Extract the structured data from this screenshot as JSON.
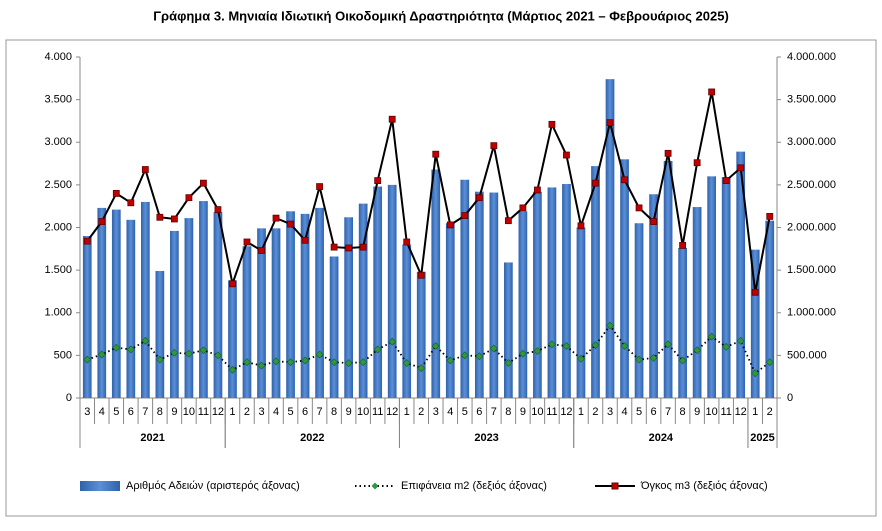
{
  "chart_data": {
    "type": "bar-line-combo",
    "title": "Γράφημα 3. Μηνιαία Ιδιωτική Οικοδομική Δραστηριότητα (Μάρτιος 2021 – Φεβρουάριος 2025)",
    "categories": [
      "3",
      "4",
      "5",
      "6",
      "7",
      "8",
      "9",
      "10",
      "11",
      "12",
      "1",
      "2",
      "3",
      "4",
      "5",
      "6",
      "7",
      "8",
      "9",
      "10",
      "11",
      "12",
      "1",
      "2",
      "3",
      "4",
      "5",
      "6",
      "7",
      "8",
      "9",
      "10",
      "11",
      "12",
      "1",
      "2",
      "3",
      "4",
      "5",
      "6",
      "7",
      "8",
      "9",
      "10",
      "11",
      "12",
      "1",
      "2"
    ],
    "category_groups": [
      {
        "label": "2021",
        "count": 10
      },
      {
        "label": "2022",
        "count": 12
      },
      {
        "label": "2023",
        "count": 12
      },
      {
        "label": "2024",
        "count": 12
      },
      {
        "label": "2025",
        "count": 2
      }
    ],
    "series": [
      {
        "name": "Αριθμός Αδειών (αριστερός άξονας)",
        "type": "bar",
        "axis": "y",
        "color": "#3a72c0",
        "values": [
          1900,
          2230,
          2210,
          2090,
          2300,
          1490,
          1960,
          2110,
          2310,
          2180,
          1380,
          1780,
          1990,
          1990,
          2190,
          2160,
          2230,
          1660,
          2120,
          2280,
          2480,
          2500,
          1800,
          1480,
          2680,
          2050,
          2560,
          2420,
          2410,
          1590,
          2190,
          2420,
          2470,
          2510,
          2000,
          2720,
          3740,
          2800,
          2050,
          2390,
          2780,
          1760,
          2240,
          2600,
          2590,
          2890,
          1740,
          2080
        ]
      },
      {
        "name": "Επιφάνεια m2 (δεξιός άξονας)",
        "type": "dotted-line",
        "axis": "y2",
        "color": "#2e9a3e",
        "values": [
          450000,
          510000,
          590000,
          570000,
          670000,
          450000,
          530000,
          520000,
          560000,
          500000,
          330000,
          420000,
          380000,
          430000,
          420000,
          440000,
          510000,
          420000,
          410000,
          420000,
          570000,
          660000,
          410000,
          350000,
          610000,
          440000,
          500000,
          490000,
          580000,
          410000,
          520000,
          550000,
          630000,
          610000,
          460000,
          620000,
          850000,
          610000,
          450000,
          470000,
          630000,
          440000,
          560000,
          720000,
          600000,
          670000,
          290000,
          420000
        ]
      },
      {
        "name": "Όγκος m3 (δεξιός άξονας)",
        "type": "line",
        "axis": "y2",
        "color": "#c00000",
        "values": [
          1840000,
          2070000,
          2400000,
          2290000,
          2680000,
          2120000,
          2100000,
          2350000,
          2520000,
          2210000,
          1340000,
          1830000,
          1730000,
          2110000,
          2040000,
          1850000,
          2480000,
          1770000,
          1760000,
          1770000,
          2550000,
          3270000,
          1830000,
          1440000,
          2860000,
          2030000,
          2140000,
          2350000,
          2960000,
          2080000,
          2230000,
          2440000,
          3210000,
          2850000,
          2020000,
          2520000,
          3230000,
          2560000,
          2230000,
          2070000,
          2870000,
          1790000,
          2760000,
          3590000,
          2550000,
          2700000,
          1240000,
          2130000
        ]
      }
    ],
    "ylim": [
      0,
      4000
    ],
    "yticks": [
      0,
      {
        "value": 500,
        "label": "500"
      },
      {
        "value": 1000,
        "label": "1.000"
      },
      {
        "value": 1500,
        "label": "1.500"
      },
      {
        "value": 2000,
        "label": "2.000"
      },
      {
        "value": 2500,
        "label": "2.500"
      },
      {
        "value": 3000,
        "label": "3.000"
      },
      {
        "value": 3500,
        "label": "3.500"
      },
      {
        "value": 4000,
        "label": "4.000"
      }
    ],
    "y2lim": [
      0,
      4000000
    ],
    "y2ticks": [
      0,
      {
        "value": 500000,
        "label": "500.000"
      },
      {
        "value": 1000000,
        "label": "1.000.000"
      },
      {
        "value": 1500000,
        "label": "1.500.000"
      },
      {
        "value": 2000000,
        "label": "2.000.000"
      },
      {
        "value": 2500000,
        "label": "2.500.000"
      },
      {
        "value": 3000000,
        "label": "3.000.000"
      },
      {
        "value": 3500000,
        "label": "3.500.000"
      },
      {
        "value": 4000000,
        "label": "4.000.000"
      }
    ],
    "grid": false,
    "legend": "bottom"
  }
}
